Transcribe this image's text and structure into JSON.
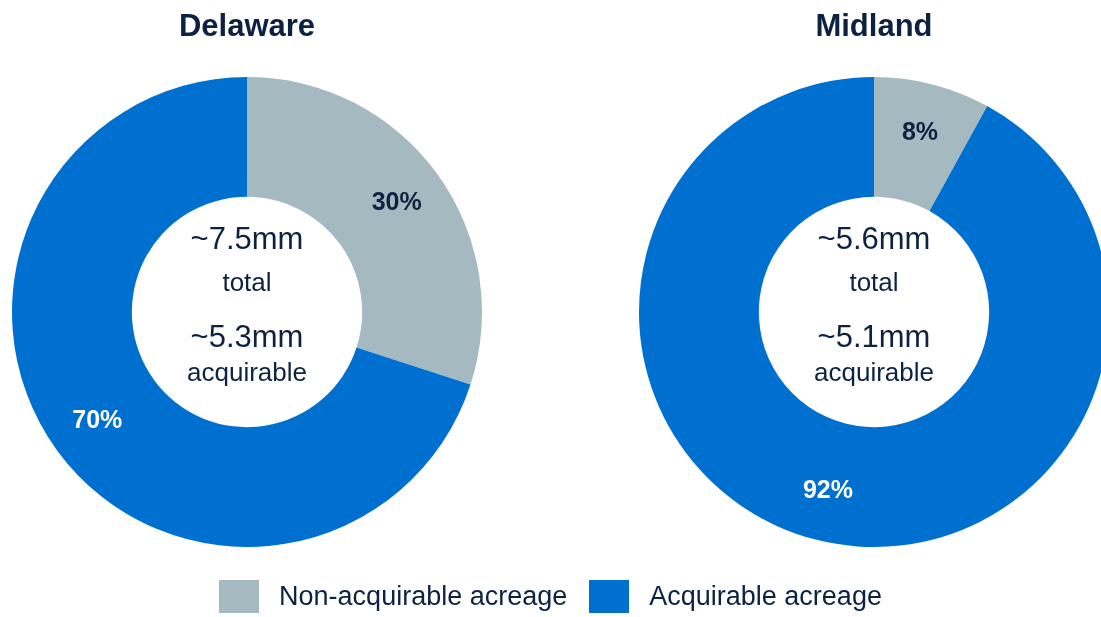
{
  "chart_data": [
    {
      "type": "donut",
      "title": "Delaware",
      "categories": [
        "Non-acquirable acreage",
        "Acquirable acreage"
      ],
      "values": [
        30,
        70
      ],
      "value_labels": [
        "30%",
        "70%"
      ],
      "colors": [
        "#a5b9c1",
        "#0070d0"
      ],
      "legend": "bottom",
      "annotations": [
        "~7.5mm",
        "total",
        "~5.3mm",
        "acquirable"
      ]
    },
    {
      "type": "donut",
      "title": "Midland",
      "categories": [
        null,
        null
      ],
      "values": [
        8,
        92
      ],
      "value_labels": [
        "8%",
        "92%"
      ],
      "colors": [
        "#a5b9c1",
        "#0070d0"
      ],
      "annotations": [
        "~5.6mm",
        "total",
        "~5.1mm",
        "acquirable"
      ]
    }
  ]
}
